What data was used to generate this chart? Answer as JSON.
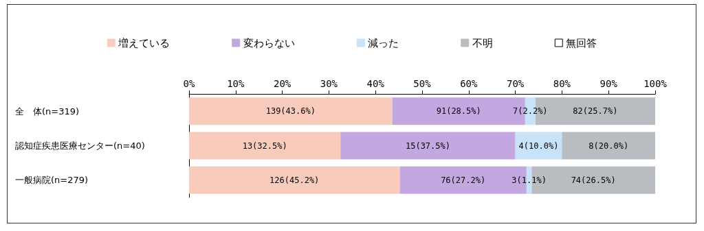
{
  "chart_data": {
    "type": "bar",
    "orientation": "horizontal",
    "stacked": true,
    "categories": [
      "全　体(n=319)",
      "認知症疾患医療センター(n=40)",
      "一般病院(n=279)"
    ],
    "series": [
      {
        "name": "増えている",
        "color": "#f8cbbd",
        "values": [
          43.6,
          32.5,
          45.2
        ],
        "value_labels": [
          "139(43.6%)",
          "13(32.5%)",
          "126(45.2%)"
        ]
      },
      {
        "name": "変わらない",
        "color": "#c3a7e0",
        "values": [
          28.5,
          37.5,
          27.2
        ],
        "value_labels": [
          "91(28.5%)",
          "15(37.5%)",
          "76(27.2%)"
        ]
      },
      {
        "name": "減った",
        "color": "#c8e2f8",
        "values": [
          2.2,
          10.0,
          1.1
        ],
        "value_labels": [
          "7(2.2%)",
          "4(10.0%)",
          "3(1.1%)"
        ]
      },
      {
        "name": "不明",
        "color": "#b9bcc0",
        "values": [
          25.7,
          20.0,
          26.5
        ],
        "value_labels": [
          "82(25.7%)",
          "8(20.0%)",
          "74(26.5%)"
        ]
      },
      {
        "name": "無回答",
        "color": "#ffffff",
        "values": [
          0,
          0,
          0
        ],
        "value_labels": [
          null,
          null,
          null
        ]
      }
    ],
    "xlim": [
      0,
      100
    ],
    "xticks": [
      {
        "value": 0,
        "label": "0%"
      },
      {
        "value": 10,
        "label": "10%"
      },
      {
        "value": 20,
        "label": "20%"
      },
      {
        "value": 30,
        "label": "30%"
      },
      {
        "value": 40,
        "label": "40%"
      },
      {
        "value": 50,
        "label": "50%"
      },
      {
        "value": 60,
        "label": "60%"
      },
      {
        "value": 70,
        "label": "70%"
      },
      {
        "value": 80,
        "label": "80%"
      },
      {
        "value": 90,
        "label": "90%"
      },
      {
        "value": 100,
        "label": "100%"
      }
    ],
    "grid": false,
    "legend": "top"
  }
}
